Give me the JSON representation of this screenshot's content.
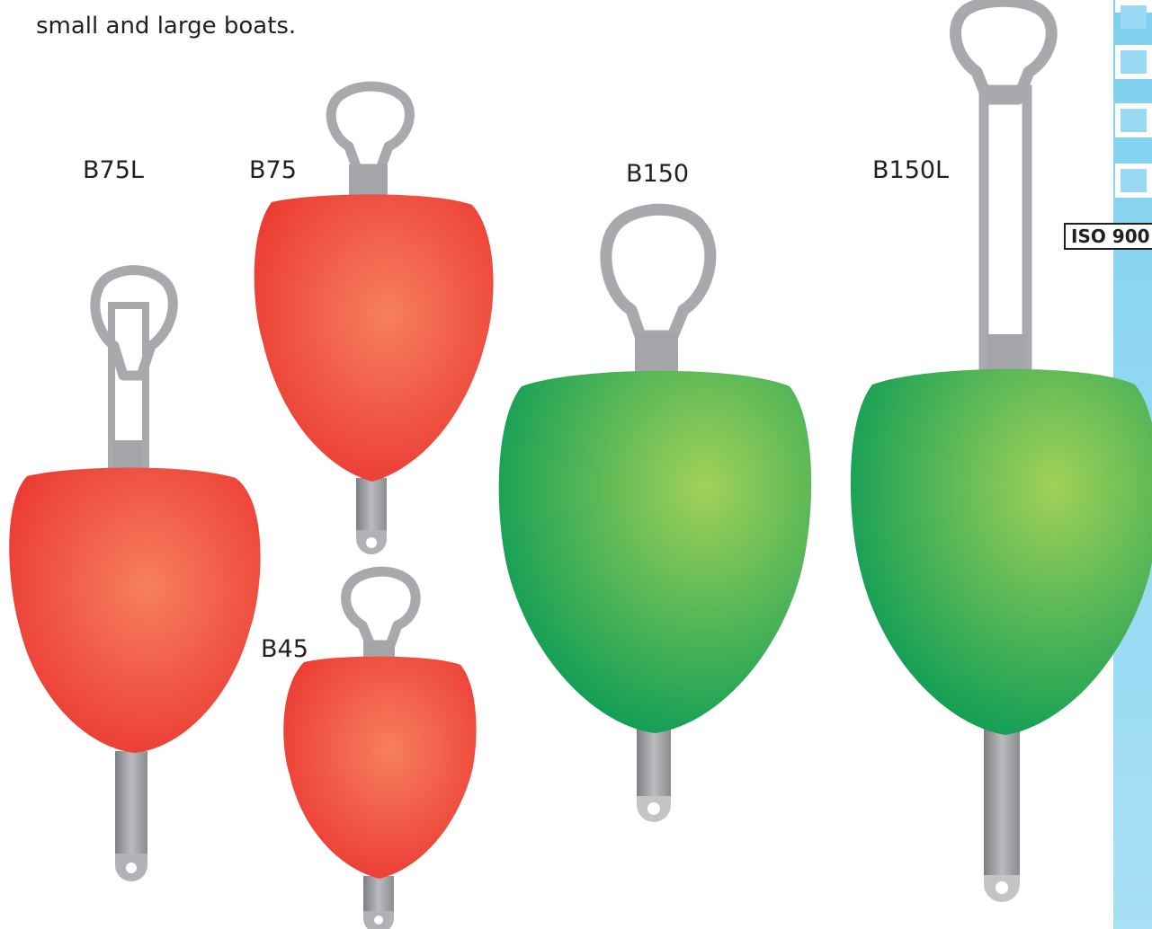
{
  "intro_text": "small and large boats.",
  "labels": {
    "b75l": "B75L",
    "b75": "B75",
    "b150": "B150",
    "b150l": "B150L",
    "b45": "B45"
  },
  "badge": {
    "text": "ISO 900"
  },
  "colors": {
    "red_light": "#f57c5e",
    "red_dark": "#ec3b33",
    "green_light": "#9fcf57",
    "green_dark": "#16a157",
    "handle_grey": "#a7a9ac",
    "side_strip": "#8fd7f2"
  }
}
